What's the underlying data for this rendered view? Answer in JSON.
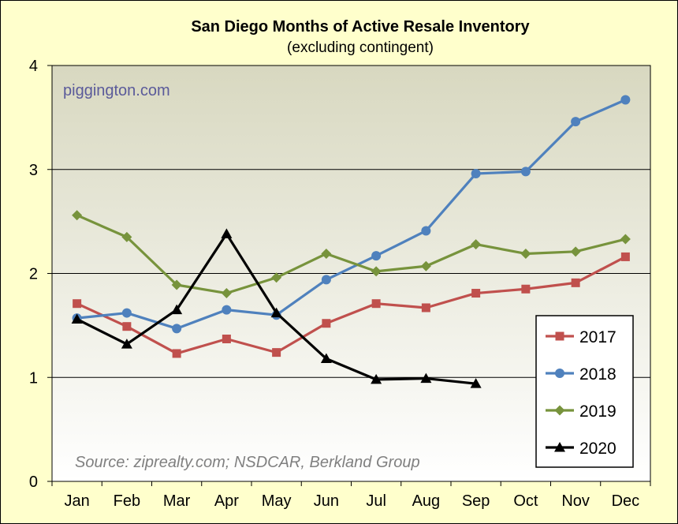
{
  "chart_data": {
    "type": "line",
    "title": "San Diego Months of Active Resale Inventory",
    "subtitle": "(excluding contingent)",
    "watermark": "piggington.com",
    "source": "Source: ziprealty.com; NSDCAR, Berkland Group",
    "categories": [
      "Jan",
      "Feb",
      "Mar",
      "Apr",
      "May",
      "Jun",
      "Jul",
      "Aug",
      "Sep",
      "Oct",
      "Nov",
      "Dec"
    ],
    "yticks": [
      "0",
      "1",
      "2",
      "3",
      "4"
    ],
    "ylim": [
      0,
      4
    ],
    "grid": true,
    "legend_position": "bottom-right",
    "series": [
      {
        "name": "2017",
        "color": "#c0504d",
        "marker": "square",
        "values": [
          1.71,
          1.49,
          1.23,
          1.37,
          1.24,
          1.52,
          1.71,
          1.67,
          1.81,
          1.85,
          1.91,
          2.16
        ]
      },
      {
        "name": "2018",
        "color": "#4f81bd",
        "marker": "circle",
        "values": [
          1.57,
          1.62,
          1.47,
          1.65,
          1.6,
          1.94,
          2.17,
          2.41,
          2.96,
          2.98,
          3.46,
          3.67
        ]
      },
      {
        "name": "2019",
        "color": "#77933c",
        "marker": "diamond",
        "values": [
          2.56,
          2.35,
          1.89,
          1.81,
          1.96,
          2.19,
          2.02,
          2.07,
          2.28,
          2.19,
          2.21,
          2.33
        ]
      },
      {
        "name": "2020",
        "color": "#000000",
        "marker": "triangle",
        "values": [
          1.56,
          1.32,
          1.65,
          2.38,
          1.62,
          1.18,
          0.98,
          0.99,
          0.94,
          null,
          null,
          null
        ]
      }
    ]
  },
  "colors": {
    "plot_bg_top": "#d8d8c0",
    "plot_bg_bottom": "#ffffff",
    "watermark": "#5a5a9a"
  }
}
